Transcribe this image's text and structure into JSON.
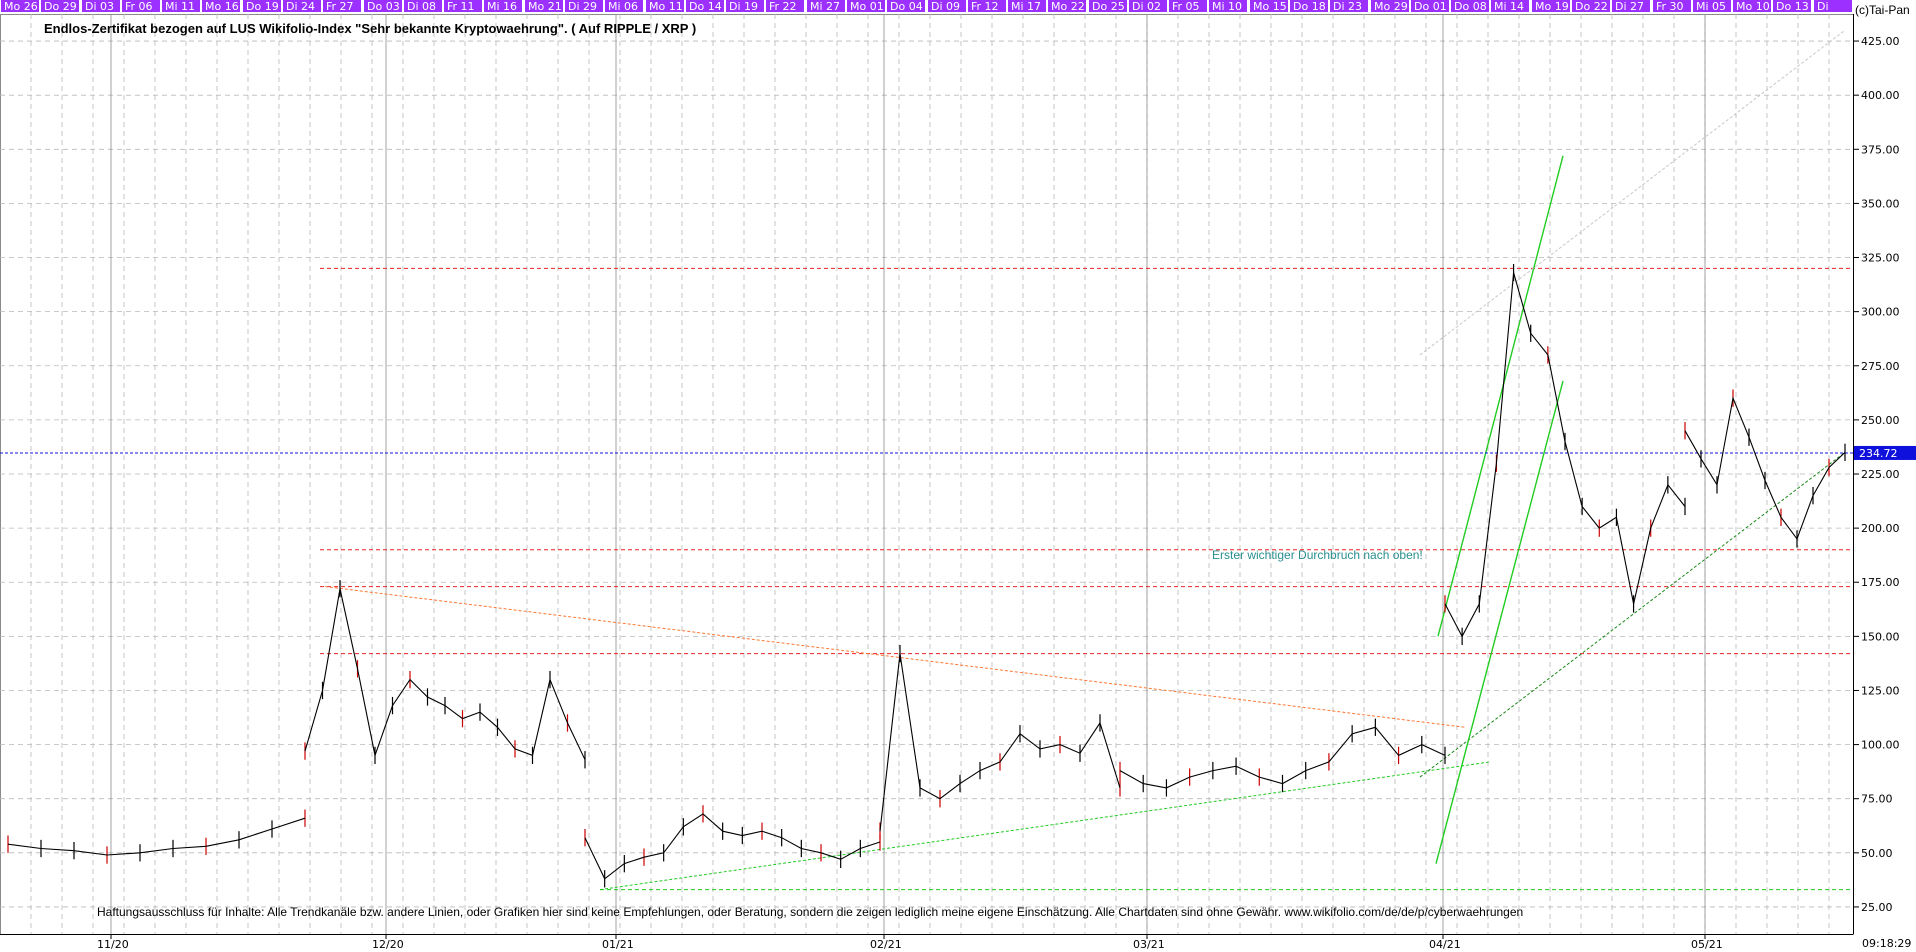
{
  "title": "Endlos-Zertifikat bezogen auf LUS Wikifolio-Index \"Sehr bekannte Kryptowaehrung\". ( Auf RIPPLE / XRP )",
  "copyright": "(c)Tai-Pan",
  "footer": "Haftungsausschluss für Inhalte: Alle Trendkanäle bzw. andere Linien, oder Grafiken hier sind keine Empfehlungen, oder Beratung, sondern die zeigen lediglich meine eigene Einschätzung. Alle Chartdaten sind ohne Gewähr.  www.wikifolio.com/de/de/p/cyberwaehrungen",
  "annotation": "Erster wichtiger Durchbruch nach oben!",
  "time": "09:18:29",
  "colors": {
    "day_bar": "#9b30ff",
    "last_price": "#1010dd",
    "resistance": "#ee2222",
    "trend": "#22cc22",
    "fan": "#ff7733",
    "candle": "#000000",
    "candle_up": "#cc0000",
    "grid": "#b9b9b9"
  },
  "day_labels": [
    "Mo 26",
    "Do 29",
    "Di 03",
    "Fr 06",
    "Mi 11",
    "Mo 16",
    "Do 19",
    "Di 24",
    "Fr 27",
    "Do 03",
    "Di 08",
    "Fr 11",
    "Mi 16",
    "Mo 21",
    "Di 29",
    "Mi 06",
    "Mo 11",
    "Do 14",
    "Di 19",
    "Fr 22",
    "Mi 27",
    "Mo 01",
    "Do 04",
    "Di 09",
    "Fr 12",
    "Mi 17",
    "Mo 22",
    "Do 25",
    "Di 02",
    "Fr 05",
    "Mi 10",
    "Mo 15",
    "Do 18",
    "Di 23",
    "Mo 29",
    "Do 01",
    "Do 08",
    "Mi 14",
    "Mo 19",
    "Do 22",
    "Di 27",
    "Fr 30",
    "Mi 05",
    "Mo 10",
    "Do 13",
    "Di"
  ],
  "chart_data": {
    "type": "line",
    "title": "Endlos-Zertifikat bezogen auf LUS Wikifolio-Index \"Sehr bekannte Kryptowaehrung\". ( Auf RIPPLE / XRP )",
    "xlabel": "",
    "ylabel": "",
    "ylim": [
      12.5,
      437.5
    ],
    "grid": true,
    "y_ticks": [
      "25.00",
      "50.00",
      "75.00",
      "100.00",
      "125.00",
      "150.00",
      "175.00",
      "200.00",
      "225.00",
      "250.00",
      "275.00",
      "300.00",
      "325.00",
      "350.00",
      "375.00",
      "400.00",
      "425.00"
    ],
    "month_labels": [
      "11/20",
      "12/20",
      "01/21",
      "02/21",
      "03/21",
      "04/21",
      "05/21"
    ],
    "last_price": "234.72",
    "series": [
      {
        "values": [
          [
            "11/20",
            54
          ],
          [
            "11/20",
            52
          ],
          [
            "11/20",
            51
          ],
          [
            "11/20",
            49
          ],
          [
            "11/20",
            50
          ],
          [
            "11/20",
            52
          ],
          [
            "11/20",
            53
          ],
          [
            "11/20",
            56
          ],
          [
            "11/20",
            61
          ],
          [
            "11/20",
            66
          ],
          [
            "12/20",
            97
          ],
          [
            "12/20",
            125
          ],
          [
            "12/20",
            172
          ],
          [
            "12/20",
            135
          ],
          [
            "12/20",
            95
          ],
          [
            "12/20",
            118
          ],
          [
            "12/20",
            130
          ],
          [
            "12/20",
            122
          ],
          [
            "12/20",
            118
          ],
          [
            "12/20",
            112
          ],
          [
            "12/20",
            115
          ],
          [
            "12/20",
            108
          ],
          [
            "12/20",
            98
          ],
          [
            "12/20",
            95
          ],
          [
            "12/20",
            130
          ],
          [
            "12/20",
            110
          ],
          [
            "12/20",
            93
          ],
          [
            "01/21",
            57
          ],
          [
            "01/21",
            38
          ],
          [
            "01/21",
            45
          ],
          [
            "01/21",
            48
          ],
          [
            "01/21",
            50
          ],
          [
            "01/21",
            62
          ],
          [
            "01/21",
            68
          ],
          [
            "01/21",
            60
          ],
          [
            "01/21",
            58
          ],
          [
            "01/21",
            60
          ],
          [
            "01/21",
            57
          ],
          [
            "01/21",
            52
          ],
          [
            "01/21",
            50
          ],
          [
            "01/21",
            47
          ],
          [
            "01/21",
            52
          ],
          [
            "01/21",
            55
          ],
          [
            "02/21",
            60
          ],
          [
            "02/21",
            142
          ],
          [
            "02/21",
            80
          ],
          [
            "02/21",
            75
          ],
          [
            "02/21",
            82
          ],
          [
            "02/21",
            88
          ],
          [
            "02/21",
            92
          ],
          [
            "02/21",
            105
          ],
          [
            "02/21",
            98
          ],
          [
            "02/21",
            100
          ],
          [
            "02/21",
            96
          ],
          [
            "02/21",
            110
          ],
          [
            "02/21",
            80
          ],
          [
            "03/21",
            88
          ],
          [
            "03/21",
            82
          ],
          [
            "03/21",
            80
          ],
          [
            "03/21",
            85
          ],
          [
            "03/21",
            88
          ],
          [
            "03/21",
            90
          ],
          [
            "03/21",
            85
          ],
          [
            "03/21",
            82
          ],
          [
            "03/21",
            88
          ],
          [
            "03/21",
            92
          ],
          [
            "03/21",
            105
          ],
          [
            "03/21",
            108
          ],
          [
            "03/21",
            95
          ],
          [
            "03/21",
            100
          ],
          [
            "03/21",
            95
          ],
          [
            "04/21",
            165
          ],
          [
            "04/21",
            150
          ],
          [
            "04/21",
            165
          ],
          [
            "04/21",
            230
          ],
          [
            "04/21",
            318
          ],
          [
            "04/21",
            290
          ],
          [
            "04/21",
            280
          ],
          [
            "04/21",
            240
          ],
          [
            "04/21",
            210
          ],
          [
            "04/21",
            200
          ],
          [
            "04/21",
            205
          ],
          [
            "04/21",
            165
          ],
          [
            "04/21",
            200
          ],
          [
            "04/21",
            220
          ],
          [
            "04/21",
            210
          ],
          [
            "05/21",
            245
          ],
          [
            "05/21",
            232
          ],
          [
            "05/21",
            220
          ],
          [
            "05/21",
            260
          ],
          [
            "05/21",
            242
          ],
          [
            "05/21",
            222
          ],
          [
            "05/21",
            205
          ],
          [
            "05/21",
            195
          ],
          [
            "05/21",
            215
          ],
          [
            "05/21",
            228
          ],
          [
            "05/21",
            235
          ]
        ]
      }
    ],
    "lines": {
      "resistance": [
        320,
        190,
        173,
        142
      ],
      "support": [
        33
      ],
      "last": 234.72
    }
  }
}
